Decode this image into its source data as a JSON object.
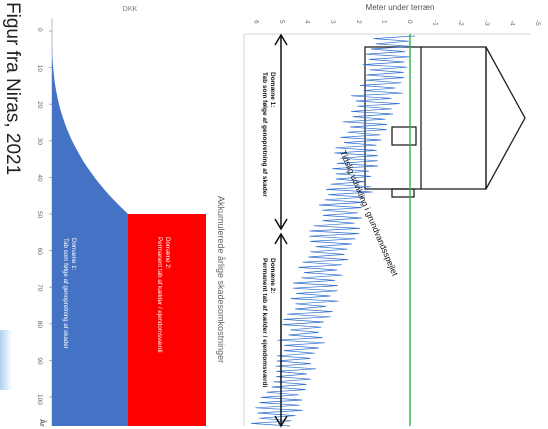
{
  "caption": "Figur fra Niras, 2021",
  "left_chart": {
    "currency_label": "DKK",
    "x_axis_label": "År",
    "ticks": [
      "0",
      "10",
      "20",
      "30",
      "40",
      "50",
      "60",
      "70",
      "80",
      "90",
      "100"
    ],
    "zone1_text": "Domæne 1:\nTab som følge af genopretning af skader",
    "zone2_text": "Domæne 2:\nPermanent tab af kælder / ejendomsværdi",
    "colors": {
      "zone1": "#4472c4",
      "zone2": "#ff0000"
    }
  },
  "middle_label": "Akkumulerede årlige skadesomkostninger",
  "right_chart": {
    "axis_title": "Meter under terræn",
    "depth_ticks": [
      "-5",
      "-4",
      "-3",
      "-2",
      "-1",
      "0",
      "1",
      "2",
      "3",
      "4",
      "5",
      "6"
    ],
    "domain1": "Domæne 1:\nTab som følge af genopretning af skader",
    "domain2": "Domæne 2:\nPermanent tab af kælder / ejendomsværdi",
    "trend_label": "Tidslig udvikling i grundvandsspejlet",
    "colors": {
      "groundwater": "#2e6fcf",
      "surface": "#2db34a"
    }
  }
}
